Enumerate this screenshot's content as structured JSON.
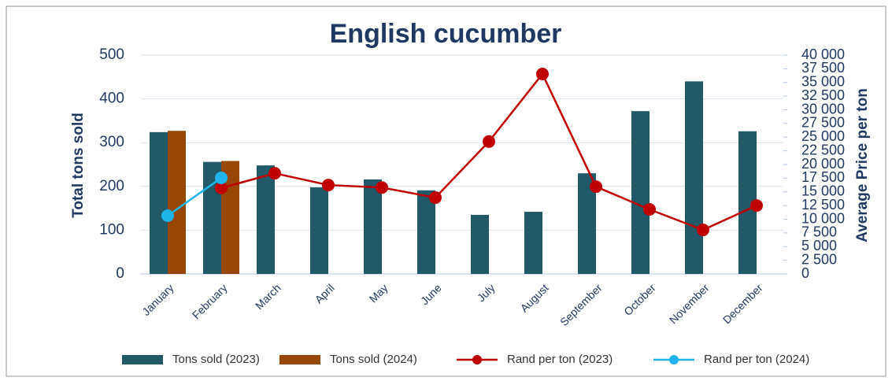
{
  "chart_data": {
    "type": "bar_line",
    "title": "English cucumber",
    "ylabel": "Total tons sold",
    "y2label": "Average Price per ton",
    "categories": [
      "January",
      "February",
      "March",
      "April",
      "May",
      "June",
      "July",
      "August",
      "September",
      "October",
      "November",
      "December"
    ],
    "series": [
      {
        "name": "Tons sold (2023)",
        "type": "bar",
        "color": "#215968",
        "values": [
          324,
          256,
          248,
          198,
          216,
          191,
          135,
          142,
          230,
          372,
          440,
          326
        ]
      },
      {
        "name": "Tons sold (2024)",
        "type": "bar",
        "color": "#974806",
        "values": [
          327,
          258,
          null,
          null,
          null,
          null,
          null,
          null,
          null,
          null,
          null,
          null
        ]
      },
      {
        "name": "Rand per ton (2023)",
        "type": "line",
        "axis": "y2",
        "color": "#c00000",
        "values": [
          null,
          15700,
          18400,
          16250,
          15800,
          13950,
          24200,
          36550,
          15950,
          11800,
          8050,
          12500
        ]
      },
      {
        "name": "Rand per ton (2024)",
        "type": "line",
        "axis": "y2",
        "color": "#1fb5ea",
        "values": [
          10650,
          17550,
          null,
          null,
          null,
          null,
          null,
          null,
          null,
          null,
          null,
          null
        ]
      }
    ],
    "ylim": [
      0,
      500
    ],
    "yticks": [
      0,
      100,
      200,
      300,
      400,
      500
    ],
    "y2lim": [
      0,
      40000
    ],
    "y2ticks": [
      0,
      {
        "value": 2500,
        "label": "2 500"
      },
      {
        "value": 5000,
        "label": "5 000"
      },
      {
        "value": 7500,
        "label": "7 500"
      },
      {
        "value": 10000,
        "label": "10 000"
      },
      {
        "value": 12500,
        "label": "12 500"
      },
      {
        "value": 15000,
        "label": "15 000"
      },
      {
        "value": 17500,
        "label": "17 500"
      },
      {
        "value": 20000,
        "label": "20 000"
      },
      {
        "value": 22500,
        "label": "22 500"
      },
      {
        "value": 25000,
        "label": "25 000"
      },
      {
        "value": 27500,
        "label": "27 500"
      },
      {
        "value": 30000,
        "label": "30 000"
      },
      {
        "value": 32500,
        "label": "32 500"
      },
      {
        "value": 35000,
        "label": "35 000"
      },
      {
        "value": 37500,
        "label": "37 500"
      },
      {
        "value": 40000,
        "label": "40 000"
      }
    ],
    "grid": true,
    "legend": "bottom"
  }
}
